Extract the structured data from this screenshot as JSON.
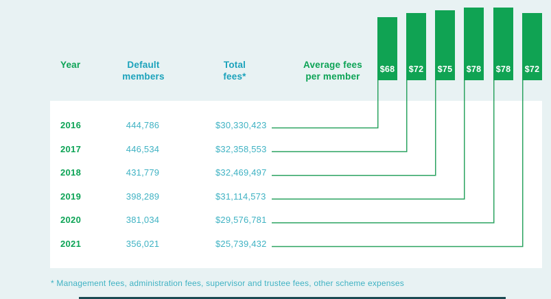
{
  "page": {
    "footnote": "* Management fees, administration fees, supervisor and trustee fees, other scheme expenses"
  },
  "table": {
    "headers": {
      "year": "Year",
      "members": "Default members",
      "fees": "Total fees*",
      "avg": "Average fees per member"
    },
    "rows": [
      {
        "year": "2016",
        "members": "444,786",
        "fees": "$30,330,423",
        "avg": "$68"
      },
      {
        "year": "2017",
        "members": "446,534",
        "fees": "$32,358,553",
        "avg": "$72"
      },
      {
        "year": "2018",
        "members": "431,779",
        "fees": "$32,469,497",
        "avg": "$75"
      },
      {
        "year": "2019",
        "members": "398,289",
        "fees": "$31,114,573",
        "avg": "$78"
      },
      {
        "year": "2020",
        "members": "381,034",
        "fees": "$29,576,781",
        "avg": "$78"
      },
      {
        "year": "2021",
        "members": "356,021",
        "fees": "$25,739,432",
        "avg": "$72"
      }
    ]
  },
  "chart_data": {
    "type": "bar",
    "title": "",
    "categories": [
      "2016",
      "2017",
      "2018",
      "2019",
      "2020",
      "2021"
    ],
    "series": [
      {
        "name": "Default members",
        "values": [
          444786,
          446534,
          431779,
          398289,
          381034,
          356021
        ]
      },
      {
        "name": "Total fees",
        "values": [
          30330423,
          32358553,
          32469497,
          31114573,
          29576781,
          25739432
        ]
      },
      {
        "name": "Average fees per member ($)",
        "values": [
          68,
          72,
          75,
          78,
          78,
          72
        ]
      }
    ],
    "bar_labels": [
      "$68",
      "$72",
      "$75",
      "$78",
      "$78",
      "$72"
    ],
    "legend_position": "none",
    "grid": false,
    "note": "* Management fees, administration fees, supervisor and trustee fees, other scheme expenses"
  },
  "colors": {
    "background": "#E8F2F3",
    "card": "#FFFFFF",
    "green": "#0CA355",
    "barGreen": "#10A353",
    "lineGreen": "#2BA360",
    "tealHeader": "#1BA2BB",
    "tealValue": "#3FB2C3",
    "darkStrip": "#1A4A52"
  }
}
